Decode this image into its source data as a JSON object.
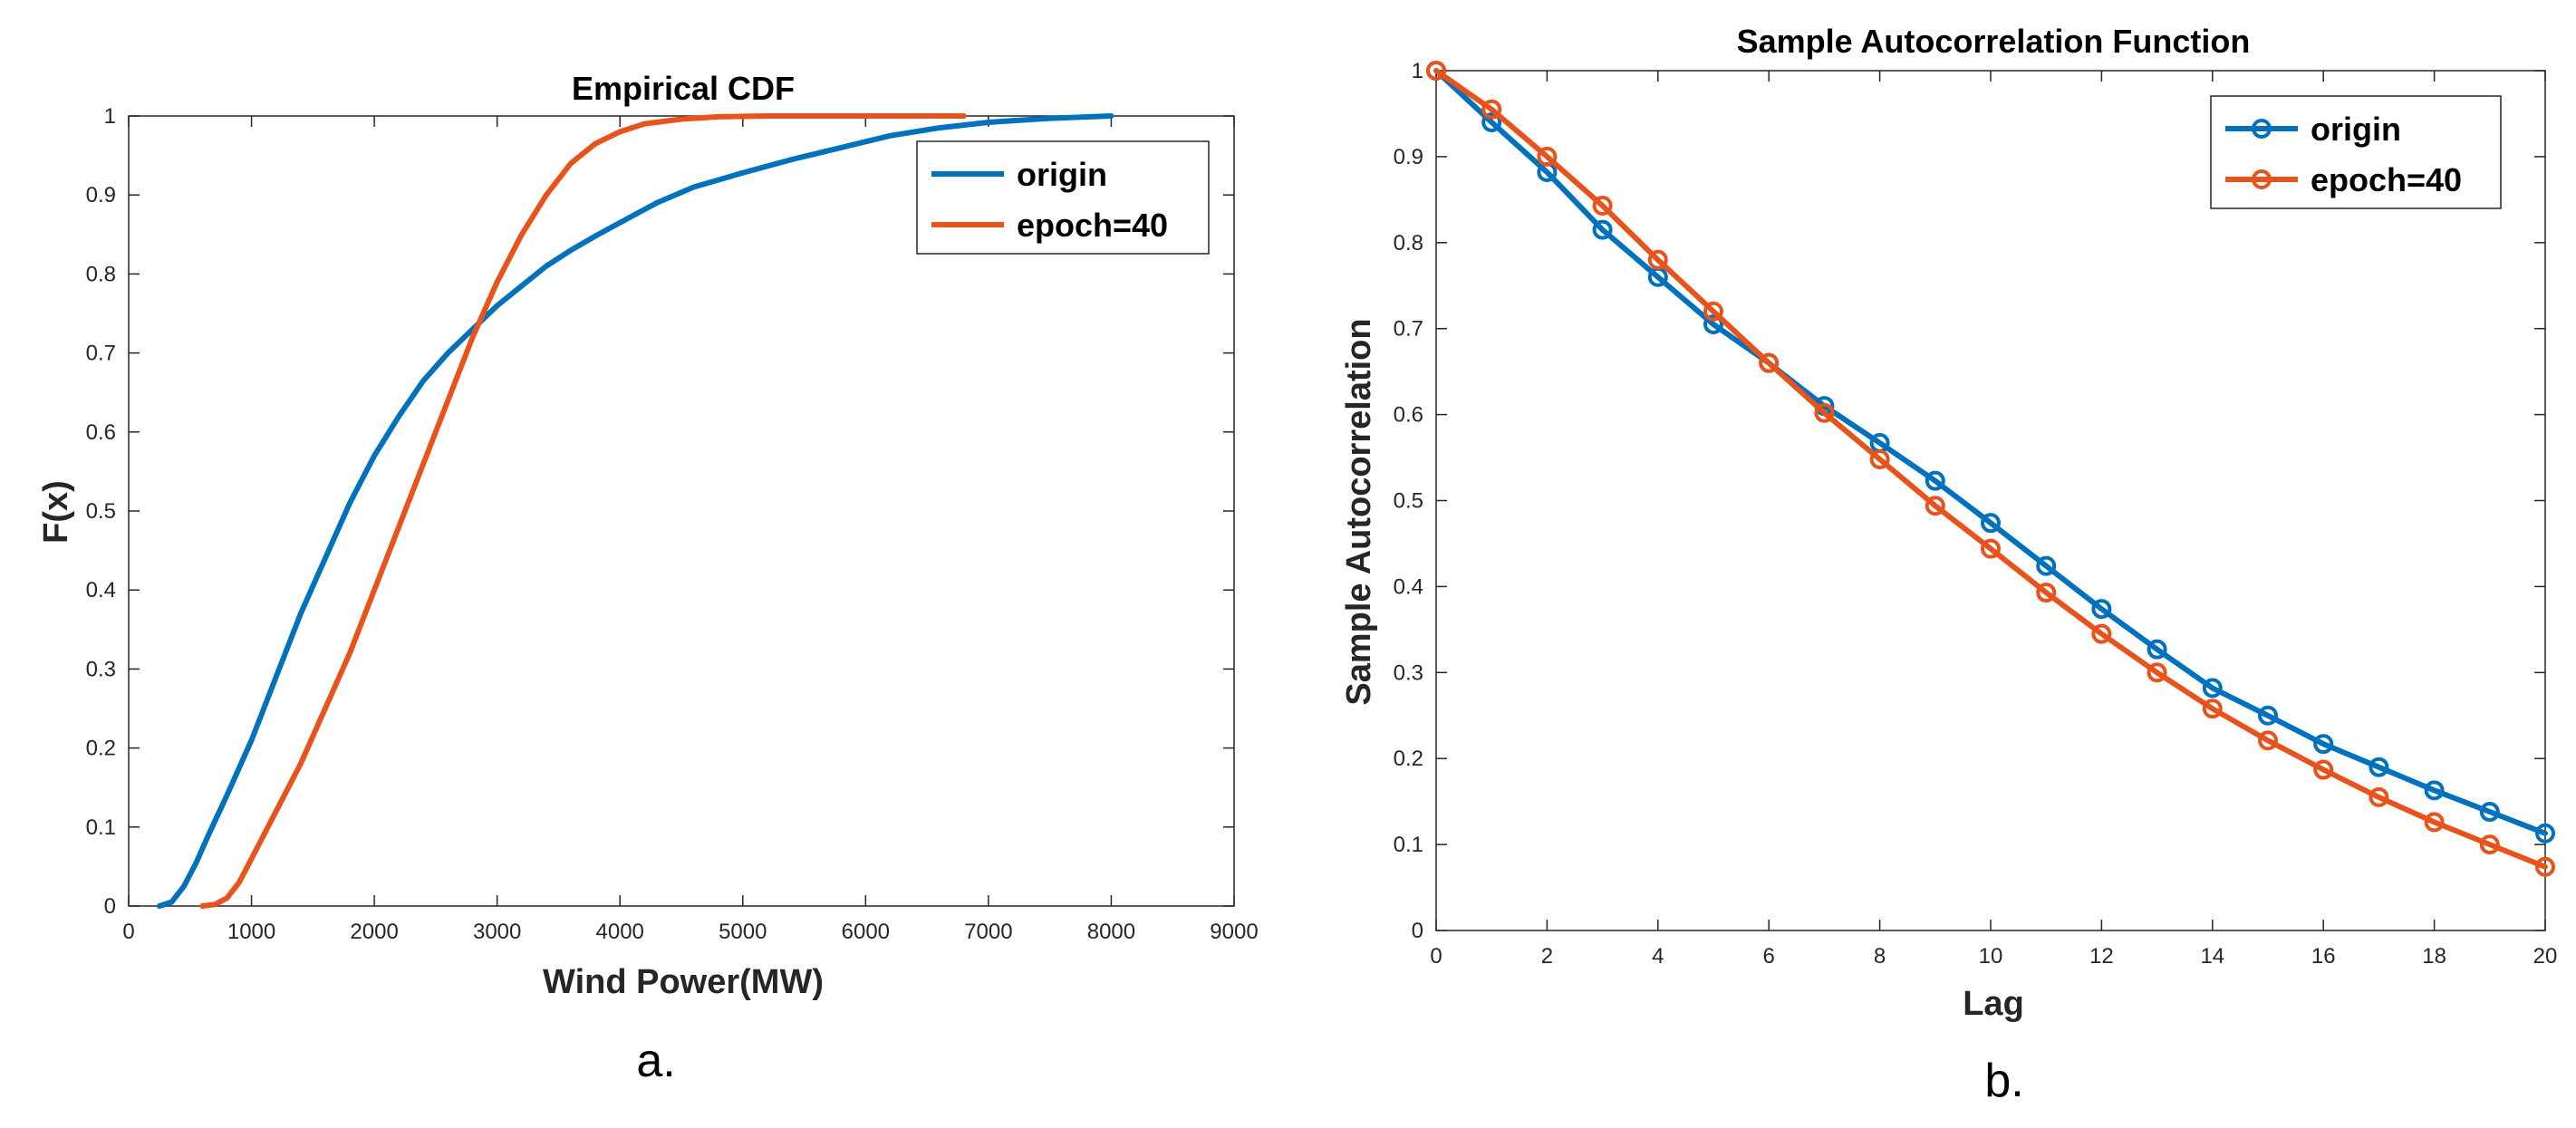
{
  "colors": {
    "origin": "#0072BD",
    "epoch": "#E8531C",
    "axis": "#262626"
  },
  "chart_data": [
    {
      "id": "a",
      "type": "line",
      "title": "Empirical CDF",
      "xlabel": "Wind Power(MW)",
      "ylabel": "F(x)",
      "xlim": [
        0,
        9000
      ],
      "ylim": [
        0,
        1
      ],
      "xticks": [
        0,
        1000,
        2000,
        3000,
        4000,
        5000,
        6000,
        7000,
        8000,
        9000
      ],
      "yticks": [
        0,
        0.1,
        0.2,
        0.3,
        0.4,
        0.5,
        0.6,
        0.7,
        0.8,
        0.9,
        1
      ],
      "xtick_labels": [
        "0",
        "1000",
        "2000",
        "3000",
        "4000",
        "5000",
        "6000",
        "7000",
        "8000",
        "9000"
      ],
      "ytick_labels": [
        "0",
        "0.1",
        "0.2",
        "0.3",
        "0.4",
        "0.5",
        "0.6",
        "0.7",
        "0.8",
        "0.9",
        "1"
      ],
      "legend_position": "top-right",
      "markers": false,
      "caption": "a.",
      "series": [
        {
          "name": "origin",
          "color_key": "origin",
          "x": [
            250,
            350,
            450,
            550,
            650,
            800,
            1000,
            1200,
            1400,
            1600,
            1800,
            2000,
            2200,
            2400,
            2600,
            2800,
            3000,
            3200,
            3400,
            3600,
            3800,
            4000,
            4300,
            4600,
            5000,
            5400,
            5800,
            6200,
            6600,
            7000,
            7500,
            8000
          ],
          "y": [
            0,
            0.005,
            0.025,
            0.055,
            0.09,
            0.14,
            0.21,
            0.29,
            0.37,
            0.44,
            0.51,
            0.57,
            0.62,
            0.665,
            0.7,
            0.73,
            0.76,
            0.785,
            0.81,
            0.83,
            0.848,
            0.865,
            0.89,
            0.91,
            0.928,
            0.945,
            0.96,
            0.975,
            0.985,
            0.992,
            0.997,
            1.0
          ]
        },
        {
          "name": "epoch=40",
          "color_key": "epoch",
          "x": [
            600,
            700,
            800,
            900,
            1000,
            1200,
            1400,
            1600,
            1800,
            2000,
            2200,
            2400,
            2600,
            2800,
            3000,
            3200,
            3400,
            3600,
            3800,
            4000,
            4200,
            4500,
            4800,
            5200,
            6000,
            6800
          ],
          "y": [
            0,
            0.002,
            0.01,
            0.03,
            0.06,
            0.12,
            0.18,
            0.25,
            0.32,
            0.4,
            0.48,
            0.56,
            0.64,
            0.72,
            0.79,
            0.85,
            0.9,
            0.94,
            0.965,
            0.98,
            0.99,
            0.996,
            0.999,
            1.0,
            1.0,
            1.0
          ]
        }
      ]
    },
    {
      "id": "b",
      "type": "line",
      "title": "Sample Autocorrelation Function",
      "xlabel": "Lag",
      "ylabel": "Sample Autocorrelation",
      "xlim": [
        0,
        20
      ],
      "ylim": [
        0,
        1
      ],
      "xticks": [
        0,
        2,
        4,
        6,
        8,
        10,
        12,
        14,
        16,
        18,
        20
      ],
      "yticks": [
        0,
        0.1,
        0.2,
        0.3,
        0.4,
        0.5,
        0.6,
        0.7,
        0.8,
        0.9,
        1
      ],
      "xtick_labels": [
        "0",
        "2",
        "4",
        "6",
        "8",
        "10",
        "12",
        "14",
        "16",
        "18",
        "20"
      ],
      "ytick_labels": [
        "0",
        "0.1",
        "0.2",
        "0.3",
        "0.4",
        "0.5",
        "0.6",
        "0.7",
        "0.8",
        "0.9",
        "1"
      ],
      "legend_position": "top-right",
      "markers": true,
      "caption": "b.",
      "series": [
        {
          "name": "origin",
          "color_key": "origin",
          "x": [
            0,
            1,
            2,
            3,
            4,
            5,
            6,
            7,
            8,
            9,
            10,
            11,
            12,
            13,
            14,
            15,
            16,
            17,
            18,
            19,
            20
          ],
          "y": [
            1.0,
            0.94,
            0.882,
            0.815,
            0.76,
            0.705,
            0.66,
            0.61,
            0.567,
            0.523,
            0.474,
            0.424,
            0.374,
            0.327,
            0.282,
            0.25,
            0.217,
            0.19,
            0.163,
            0.138,
            0.113
          ]
        },
        {
          "name": "epoch=40",
          "color_key": "epoch",
          "x": [
            0,
            1,
            2,
            3,
            4,
            5,
            6,
            7,
            8,
            9,
            10,
            11,
            12,
            13,
            14,
            15,
            16,
            17,
            18,
            19,
            20
          ],
          "y": [
            1.0,
            0.955,
            0.9,
            0.843,
            0.78,
            0.72,
            0.66,
            0.602,
            0.548,
            0.494,
            0.444,
            0.393,
            0.345,
            0.3,
            0.258,
            0.221,
            0.187,
            0.155,
            0.126,
            0.1,
            0.074
          ]
        }
      ]
    }
  ]
}
